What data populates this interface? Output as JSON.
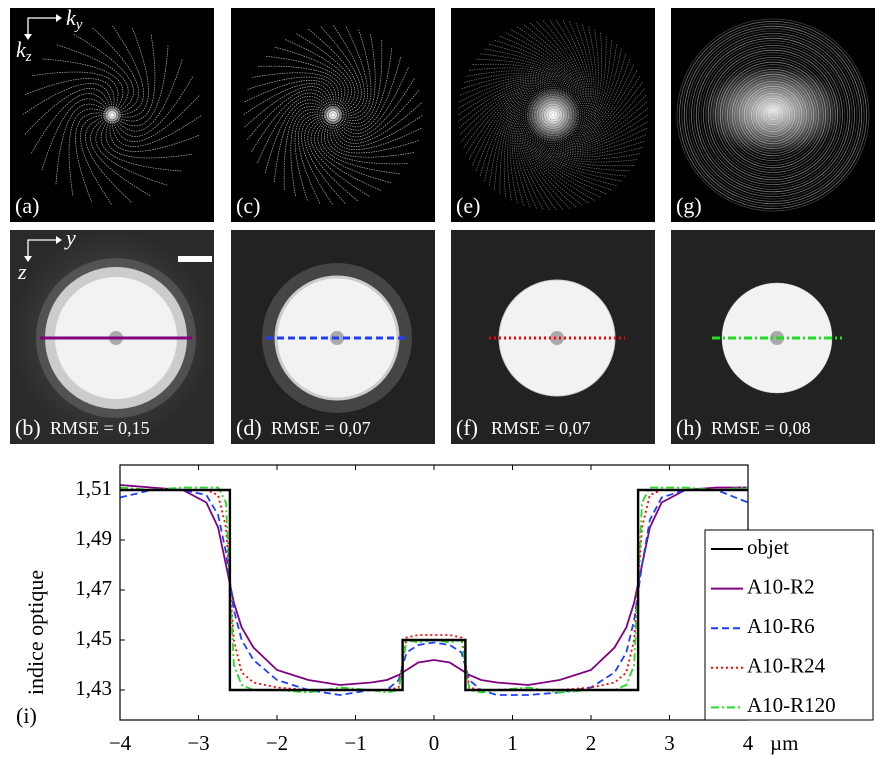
{
  "panels": [
    {
      "label": "(a)"
    },
    {
      "label": "(b)",
      "rmse": "RMSE = 0,15"
    },
    {
      "label": "(c)"
    },
    {
      "label": "(d)",
      "rmse": "RMSE = 0,07"
    },
    {
      "label": "(e)"
    },
    {
      "label": "(f)",
      "rmse": "RMSE = 0,07"
    },
    {
      "label": "(g)"
    },
    {
      "label": "(h)",
      "rmse": "RMSE = 0,08"
    }
  ],
  "axes_top": {
    "h": {
      "base": "k",
      "sub": "y"
    },
    "v": {
      "base": "k",
      "sub": "z"
    }
  },
  "axes_bottom": {
    "h": "y",
    "v": "z"
  },
  "chart_data": {
    "type": "line",
    "panel_label": "(i)",
    "ylabel": "indice optique",
    "xunit": "µm",
    "xlim": [
      -4,
      4
    ],
    "ylim": [
      1.418,
      1.52
    ],
    "xticks": [
      {
        "value": -4,
        "label": "−4"
      },
      {
        "value": -3,
        "label": "−3"
      },
      {
        "value": -2,
        "label": "−2"
      },
      {
        "value": -1,
        "label": "−1"
      },
      0,
      1,
      2,
      3,
      4
    ],
    "yticks": [
      {
        "value": 1.43,
        "label": "1,43"
      },
      {
        "value": 1.45,
        "label": "1,45"
      },
      {
        "value": 1.47,
        "label": "1,47"
      },
      {
        "value": 1.49,
        "label": "1,49"
      },
      {
        "value": 1.51,
        "label": "1,51"
      }
    ],
    "legend": "right",
    "series": [
      {
        "name": "objet",
        "color": "#000000",
        "dash": "solid",
        "x": [
          -4,
          -2.6,
          -2.6,
          -0.4,
          -0.4,
          0.4,
          0.4,
          2.6,
          2.6,
          4
        ],
        "values": [
          1.51,
          1.51,
          1.43,
          1.43,
          1.45,
          1.45,
          1.43,
          1.43,
          1.51,
          1.51
        ]
      },
      {
        "name": "A10-R2",
        "color": "#800080",
        "dash": "solid",
        "x": [
          -4,
          -3.6,
          -3.2,
          -2.9,
          -2.75,
          -2.65,
          -2.55,
          -2.45,
          -2.3,
          -2,
          -1.6,
          -1.2,
          -0.8,
          -0.6,
          -0.45,
          -0.35,
          -0.2,
          0,
          0.2,
          0.35,
          0.45,
          0.6,
          0.8,
          1.2,
          1.6,
          2,
          2.3,
          2.45,
          2.55,
          2.65,
          2.75,
          2.9,
          3.2,
          3.6,
          4
        ],
        "values": [
          1.512,
          1.511,
          1.51,
          1.505,
          1.495,
          1.48,
          1.465,
          1.455,
          1.447,
          1.438,
          1.434,
          1.432,
          1.433,
          1.434,
          1.436,
          1.438,
          1.441,
          1.442,
          1.441,
          1.438,
          1.436,
          1.434,
          1.433,
          1.432,
          1.434,
          1.438,
          1.447,
          1.455,
          1.465,
          1.48,
          1.495,
          1.505,
          1.51,
          1.511,
          1.511
        ]
      },
      {
        "name": "A10-R6",
        "color": "#1f3fff",
        "dash": "dashed",
        "x": [
          -4,
          -3.6,
          -3.2,
          -2.9,
          -2.75,
          -2.65,
          -2.55,
          -2.45,
          -2.3,
          -2,
          -1.6,
          -1.2,
          -0.8,
          -0.6,
          -0.45,
          -0.35,
          -0.2,
          0,
          0.2,
          0.35,
          0.45,
          0.6,
          0.8,
          1.2,
          1.6,
          2,
          2.3,
          2.45,
          2.55,
          2.65,
          2.75,
          2.9,
          3.2,
          3.6,
          4
        ],
        "values": [
          1.507,
          1.51,
          1.51,
          1.508,
          1.5,
          1.485,
          1.462,
          1.45,
          1.442,
          1.434,
          1.43,
          1.428,
          1.43,
          1.43,
          1.434,
          1.445,
          1.448,
          1.449,
          1.448,
          1.445,
          1.434,
          1.43,
          1.428,
          1.428,
          1.429,
          1.431,
          1.437,
          1.445,
          1.458,
          1.48,
          1.498,
          1.507,
          1.51,
          1.51,
          1.505
        ]
      },
      {
        "name": "A10-R24",
        "color": "#ff0000",
        "dash": "dotted",
        "x": [
          -4,
          -3.6,
          -3.2,
          -2.9,
          -2.75,
          -2.65,
          -2.55,
          -2.45,
          -2.3,
          -2,
          -1.6,
          -1.2,
          -0.8,
          -0.6,
          -0.45,
          -0.35,
          -0.2,
          0,
          0.2,
          0.35,
          0.45,
          0.6,
          0.8,
          1.2,
          1.6,
          2,
          2.3,
          2.45,
          2.55,
          2.65,
          2.75,
          2.9,
          3.2,
          3.6,
          4
        ],
        "values": [
          1.51,
          1.51,
          1.51,
          1.51,
          1.508,
          1.495,
          1.45,
          1.437,
          1.433,
          1.431,
          1.43,
          1.43,
          1.43,
          1.43,
          1.431,
          1.451,
          1.452,
          1.452,
          1.452,
          1.451,
          1.431,
          1.43,
          1.43,
          1.43,
          1.43,
          1.431,
          1.433,
          1.437,
          1.45,
          1.495,
          1.508,
          1.51,
          1.51,
          1.51,
          1.51
        ]
      },
      {
        "name": "A10-R120",
        "color": "#22dd22",
        "dash": "dashdot",
        "x": [
          -4,
          -3.6,
          -3.2,
          -2.9,
          -2.75,
          -2.65,
          -2.55,
          -2.45,
          -2.3,
          -2,
          -1.6,
          -1.2,
          -0.8,
          -0.6,
          -0.45,
          -0.35,
          -0.2,
          0,
          0.2,
          0.35,
          0.45,
          0.6,
          0.8,
          1.2,
          1.6,
          2,
          2.3,
          2.45,
          2.55,
          2.65,
          2.75,
          2.9,
          3.2,
          3.6,
          4
        ],
        "values": [
          1.511,
          1.51,
          1.511,
          1.511,
          1.511,
          1.505,
          1.44,
          1.432,
          1.43,
          1.43,
          1.429,
          1.431,
          1.43,
          1.429,
          1.43,
          1.45,
          1.449,
          1.45,
          1.449,
          1.45,
          1.43,
          1.429,
          1.43,
          1.431,
          1.429,
          1.43,
          1.43,
          1.432,
          1.44,
          1.505,
          1.511,
          1.511,
          1.511,
          1.51,
          1.511
        ]
      }
    ]
  }
}
